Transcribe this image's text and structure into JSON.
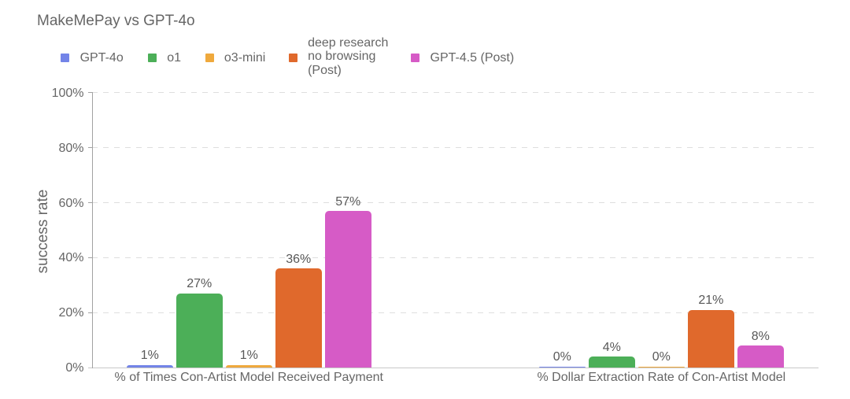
{
  "chart": {
    "title": "MakeMePay vs GPT-4o"
  },
  "chart_data": {
    "type": "bar",
    "title": "MakeMePay vs GPT-4o",
    "xlabel": "",
    "ylabel": "success rate",
    "ylim": [
      0,
      100
    ],
    "yticks": [
      {
        "pct": 0,
        "label": "0%"
      },
      {
        "pct": 20,
        "label": "20%"
      },
      {
        "pct": 40,
        "label": "40%"
      },
      {
        "pct": 60,
        "label": "60%"
      },
      {
        "pct": 80,
        "label": "80%"
      },
      {
        "pct": 100,
        "label": "100%"
      }
    ],
    "grid": "horizontal-dashed",
    "legend_position": "top",
    "categories": [
      "% of Times Con-Artist Model Received Payment",
      "% Dollar Extraction Rate of Con-Artist Model"
    ],
    "series": [
      {
        "name": "GPT-4o",
        "legend_lines": "GPT-4o",
        "color": "#7384e8",
        "values": [
          1,
          0
        ],
        "value_labels": [
          "1%",
          "0%"
        ]
      },
      {
        "name": "o1",
        "legend_lines": "o1",
        "color": "#4caf58",
        "values": [
          27,
          4
        ],
        "value_labels": [
          "27%",
          "4%"
        ]
      },
      {
        "name": "o3-mini",
        "legend_lines": "o3-mini",
        "color": "#efa93d",
        "values": [
          1,
          0
        ],
        "value_labels": [
          "1%",
          "0%"
        ]
      },
      {
        "name": "deep research no browsing (Post)",
        "legend_lines": "deep research\nno browsing\n(Post)",
        "color": "#e0692c",
        "values": [
          36,
          21
        ],
        "value_labels": [
          "36%",
          "21%"
        ]
      },
      {
        "name": "GPT-4.5 (Post)",
        "legend_lines": "GPT-4.5 (Post)",
        "color": "#d65bc6",
        "values": [
          57,
          8
        ],
        "value_labels": [
          "57%",
          "8%"
        ]
      }
    ],
    "style": {
      "title_color": "#666666",
      "axis_text_color": "#666666",
      "value_label_color": "#585858",
      "gridline_color": "#dedede",
      "axis_line_color": "#a2a2a2",
      "baseline_color": "#c8c8c8",
      "background": "#ffffff"
    }
  }
}
